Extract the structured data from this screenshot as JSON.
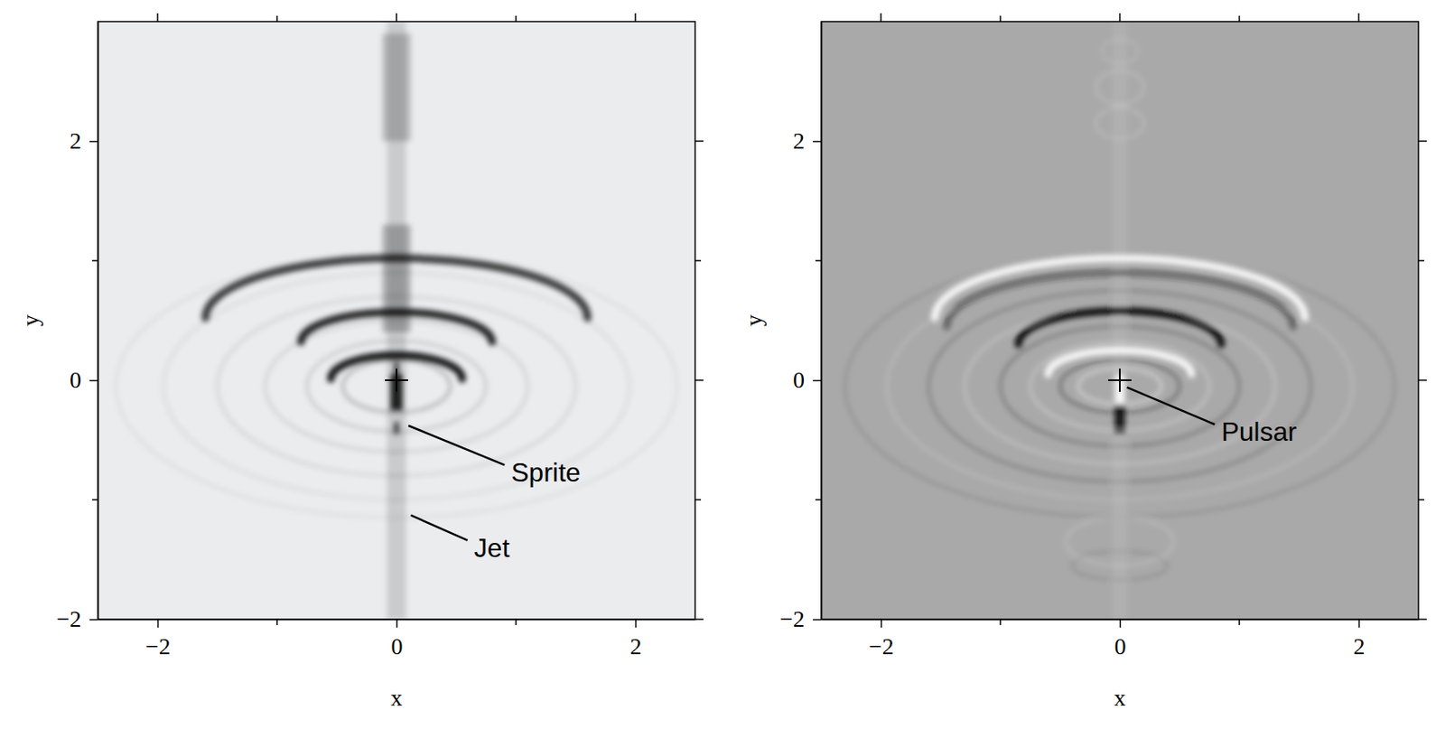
{
  "chart_data": [
    {
      "type": "image",
      "x_label": "x",
      "y_label": "y",
      "xlim": [
        -2.5,
        2.5
      ],
      "ylim": [
        -2,
        3
      ],
      "xticks": [
        {
          "value": -2,
          "label": "−2"
        },
        0,
        2
      ],
      "yticks": [
        {
          "value": -2,
          "label": "−2"
        },
        0,
        2
      ],
      "xticks_minor": [
        -1,
        1
      ],
      "yticks_minor": [
        -1,
        1
      ],
      "color": "#ebecee",
      "rings": [
        {
          "cx": 0,
          "cy": -0.05,
          "rx": 0.45,
          "ry": 0.22,
          "intensity": -0.3
        },
        {
          "cx": 0,
          "cy": -0.05,
          "rx": 0.75,
          "ry": 0.38,
          "intensity": -0.18
        },
        {
          "cx": 0,
          "cy": -0.05,
          "rx": 1.1,
          "ry": 0.55,
          "intensity": -0.14
        },
        {
          "cx": 0,
          "cy": -0.05,
          "rx": 1.5,
          "ry": 0.75,
          "intensity": -0.12
        },
        {
          "cx": 0,
          "cy": -0.05,
          "rx": 1.95,
          "ry": 0.95,
          "intensity": -0.09
        },
        {
          "cx": 0,
          "cy": -0.05,
          "rx": 2.35,
          "ry": 1.1,
          "intensity": -0.07
        }
      ],
      "arcs": [
        {
          "cx": 0,
          "cy": 0.52,
          "rx": 1.6,
          "ry": 0.5,
          "intensity": -0.75
        },
        {
          "cx": 0,
          "cy": 0.32,
          "rx": 0.8,
          "ry": 0.25,
          "intensity": -0.85
        },
        {
          "cx": 0,
          "cy": 0.01,
          "rx": 0.55,
          "ry": 0.2,
          "intensity": -0.9
        }
      ],
      "bands": [
        {
          "x": 0,
          "half_width": 0.08,
          "y0": -2,
          "y1": 3,
          "intensity": -0.14
        },
        {
          "x": 0,
          "half_width": 0.12,
          "y0": 0.4,
          "y1": 1.3,
          "intensity": -0.25
        },
        {
          "x": 0,
          "half_width": 0.12,
          "y0": 2.0,
          "y1": 2.9,
          "intensity": -0.2
        },
        {
          "x": 0,
          "half_width": 0.05,
          "y0": -0.25,
          "y1": 0.05,
          "intensity": -0.85
        },
        {
          "x": 0,
          "half_width": 0.02,
          "y0": -0.45,
          "y1": -0.35,
          "intensity": -0.7
        },
        {
          "x": 0,
          "half_width": 0.02,
          "y0": 0.05,
          "y1": 0.15,
          "intensity": -0.7
        }
      ],
      "cross": {
        "x": 0,
        "y": 0
      },
      "annotations": [
        {
          "text": "Sprite",
          "x": 0.1,
          "y": -0.38,
          "tx": 0.96,
          "ty": -0.79
        },
        {
          "text": "Jet",
          "x": 0.12,
          "y": -1.13,
          "tx": 0.65,
          "ty": -1.42
        }
      ]
    },
    {
      "type": "image",
      "x_label": "x",
      "y_label": "y",
      "xlim": [
        -2.5,
        2.5
      ],
      "ylim": [
        -2,
        3
      ],
      "xticks": [
        {
          "value": -2,
          "label": "−2"
        },
        0,
        2
      ],
      "yticks": [
        {
          "value": -2,
          "label": "−2"
        },
        0,
        2
      ],
      "xticks_minor": [
        -1,
        1
      ],
      "yticks_minor": [
        -1,
        1
      ],
      "color": "#a9a9a9",
      "rings": [
        {
          "cx": 0,
          "cy": -0.05,
          "rx": 0.35,
          "ry": 0.15,
          "intensity": 0.5
        },
        {
          "cx": 0,
          "cy": -0.05,
          "rx": 0.5,
          "ry": 0.22,
          "intensity": -0.4
        },
        {
          "cx": 0,
          "cy": -0.05,
          "rx": 0.75,
          "ry": 0.37,
          "intensity": 0.35
        },
        {
          "cx": 0,
          "cy": -0.05,
          "rx": 1.0,
          "ry": 0.5,
          "intensity": -0.3
        },
        {
          "cx": 0,
          "cy": -0.05,
          "rx": 1.3,
          "ry": 0.65,
          "intensity": 0.3
        },
        {
          "cx": 0,
          "cy": -0.05,
          "rx": 1.6,
          "ry": 0.8,
          "intensity": -0.25
        },
        {
          "cx": 0,
          "cy": -0.05,
          "rx": 1.95,
          "ry": 0.95,
          "intensity": 0.2
        },
        {
          "cx": 0,
          "cy": -0.05,
          "rx": 2.3,
          "ry": 1.1,
          "intensity": -0.15
        },
        {
          "cx": 0,
          "cy": 2.15,
          "rx": 0.2,
          "ry": 0.13,
          "intensity": 0.2
        },
        {
          "cx": 0,
          "cy": 2.45,
          "rx": 0.2,
          "ry": 0.14,
          "intensity": 0.2
        },
        {
          "cx": 0,
          "cy": 2.75,
          "rx": 0.15,
          "ry": 0.1,
          "intensity": 0.15
        },
        {
          "cx": 0,
          "cy": -1.35,
          "rx": 0.45,
          "ry": 0.2,
          "intensity": 0.2
        },
        {
          "cx": 0,
          "cy": -1.55,
          "rx": 0.4,
          "ry": 0.12,
          "intensity": -0.15
        }
      ],
      "arcs": [
        {
          "cx": 0,
          "cy": 0.52,
          "rx": 1.55,
          "ry": 0.5,
          "intensity": 0.9
        },
        {
          "cx": 0,
          "cy": 0.45,
          "rx": 1.45,
          "ry": 0.45,
          "intensity": -0.4
        },
        {
          "cx": 0,
          "cy": 0.3,
          "rx": 0.85,
          "ry": 0.28,
          "intensity": -0.9
        },
        {
          "cx": 0,
          "cy": 0.05,
          "rx": 0.6,
          "ry": 0.2,
          "intensity": 0.9
        }
      ],
      "bands": [
        {
          "x": 0,
          "half_width": 0.06,
          "y0": -2,
          "y1": 3,
          "intensity": 0.08
        },
        {
          "x": 0,
          "half_width": 0.04,
          "y0": -0.2,
          "y1": 0.05,
          "intensity": 0.9
        },
        {
          "x": 0,
          "half_width": 0.05,
          "y0": -0.45,
          "y1": -0.2,
          "intensity": -0.8
        }
      ],
      "cross": {
        "x": 0,
        "y": 0
      },
      "annotations": [
        {
          "text": "Pulsar",
          "x": 0.06,
          "y": -0.06,
          "tx": 0.85,
          "ty": -0.45
        }
      ]
    }
  ]
}
